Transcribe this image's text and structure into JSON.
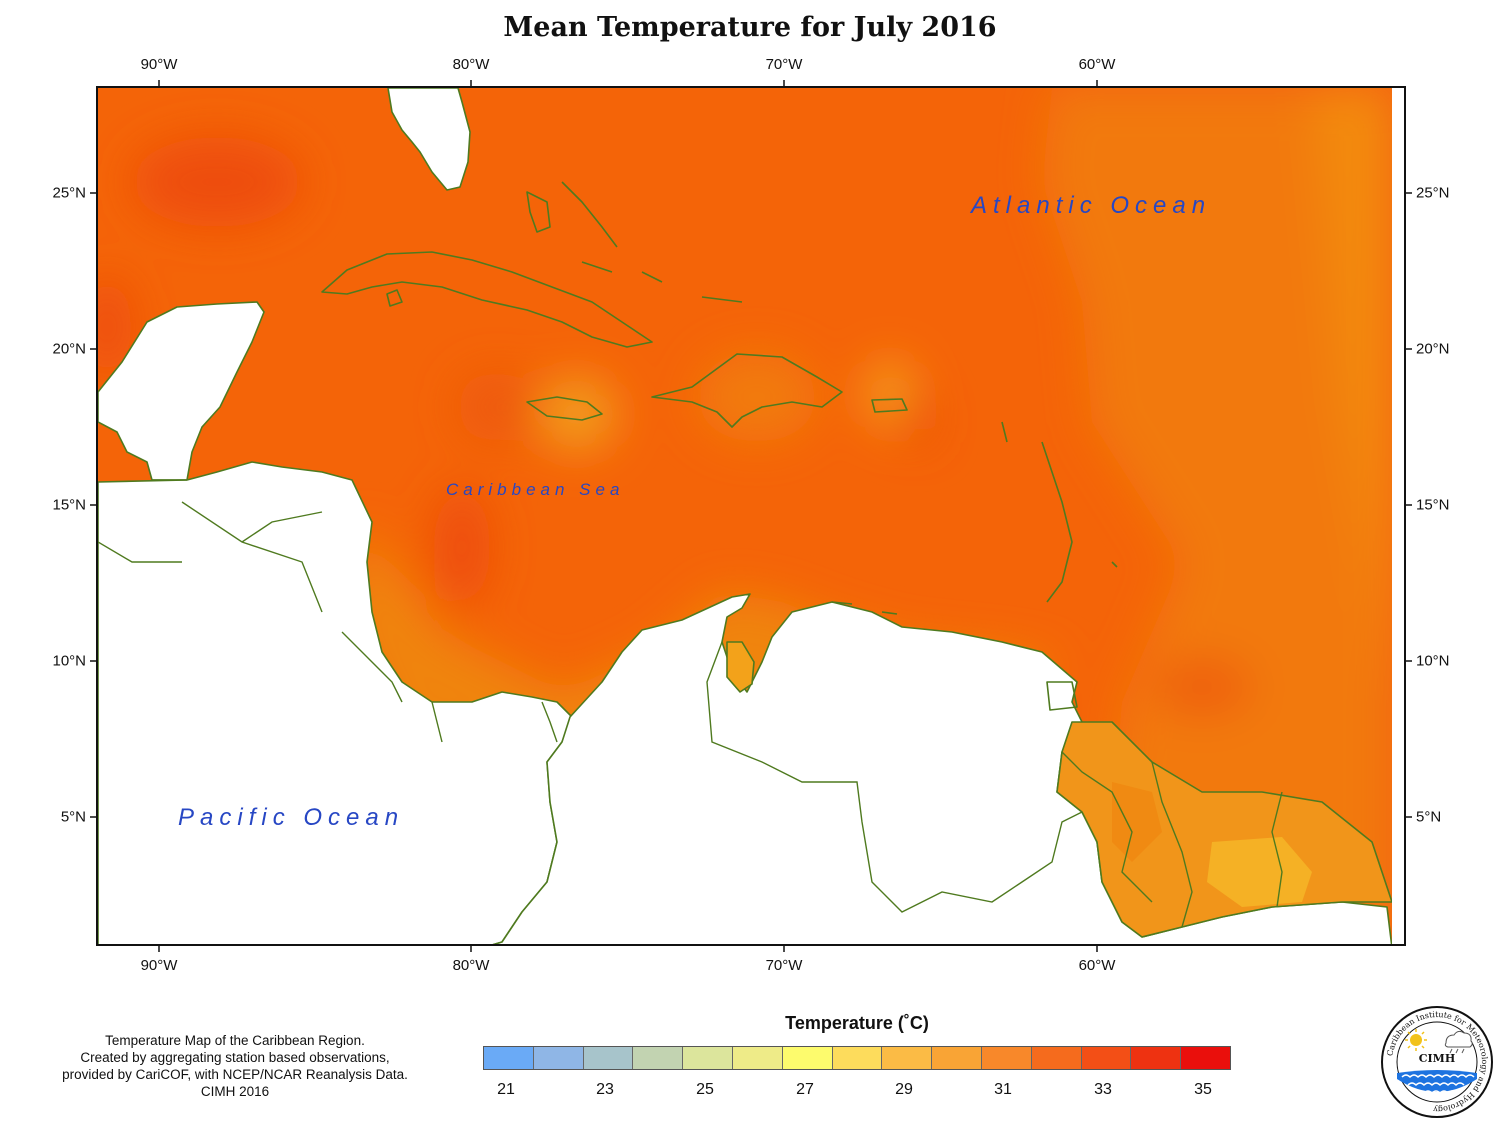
{
  "title": "Mean Temperature for July 2016",
  "longitude_labels": [
    "90°W",
    "80°W",
    "70°W",
    "60°W"
  ],
  "latitude_labels": [
    "25°N",
    "20°N",
    "15°N",
    "10°N",
    "5°N"
  ],
  "ocean_labels": {
    "atlantic": "Atlantic Ocean",
    "caribbean": "Caribbean Sea",
    "pacific": "Pacific Ocean"
  },
  "legend": {
    "title": "Temperature (˚C)",
    "tick_labels": [
      "21",
      "23",
      "25",
      "27",
      "29",
      "31",
      "33",
      "35"
    ],
    "colors": [
      "#6aaaf6",
      "#8fb6e6",
      "#a7c4cb",
      "#c2d3b1",
      "#dce59c",
      "#eeeb88",
      "#fdfb6d",
      "#fddc5c",
      "#fbbb45",
      "#f9a435",
      "#f8882a",
      "#f56b1d",
      "#f34f16",
      "#ee3211",
      "#ea0f0c"
    ]
  },
  "credits": [
    "Temperature Map of the Caribbean Region.",
    "Created by aggregating station based observations,",
    "provided by CariCOF, with NCEP/NCAR Reanalysis Data.",
    "CIMH 2016"
  ],
  "logo": {
    "text": "CIMH",
    "ring_text": "Caribbean Institute for Meteorology and Hydrology"
  },
  "colors": {
    "coast": "#4f7a1f",
    "base_sea": "#f46408",
    "warm_core": "#ee4e0a",
    "cooler_east": "#f2790c",
    "land_warm": "#ef8a10",
    "land_mild": "#f0a018",
    "ocean_text": "#2747c4"
  }
}
